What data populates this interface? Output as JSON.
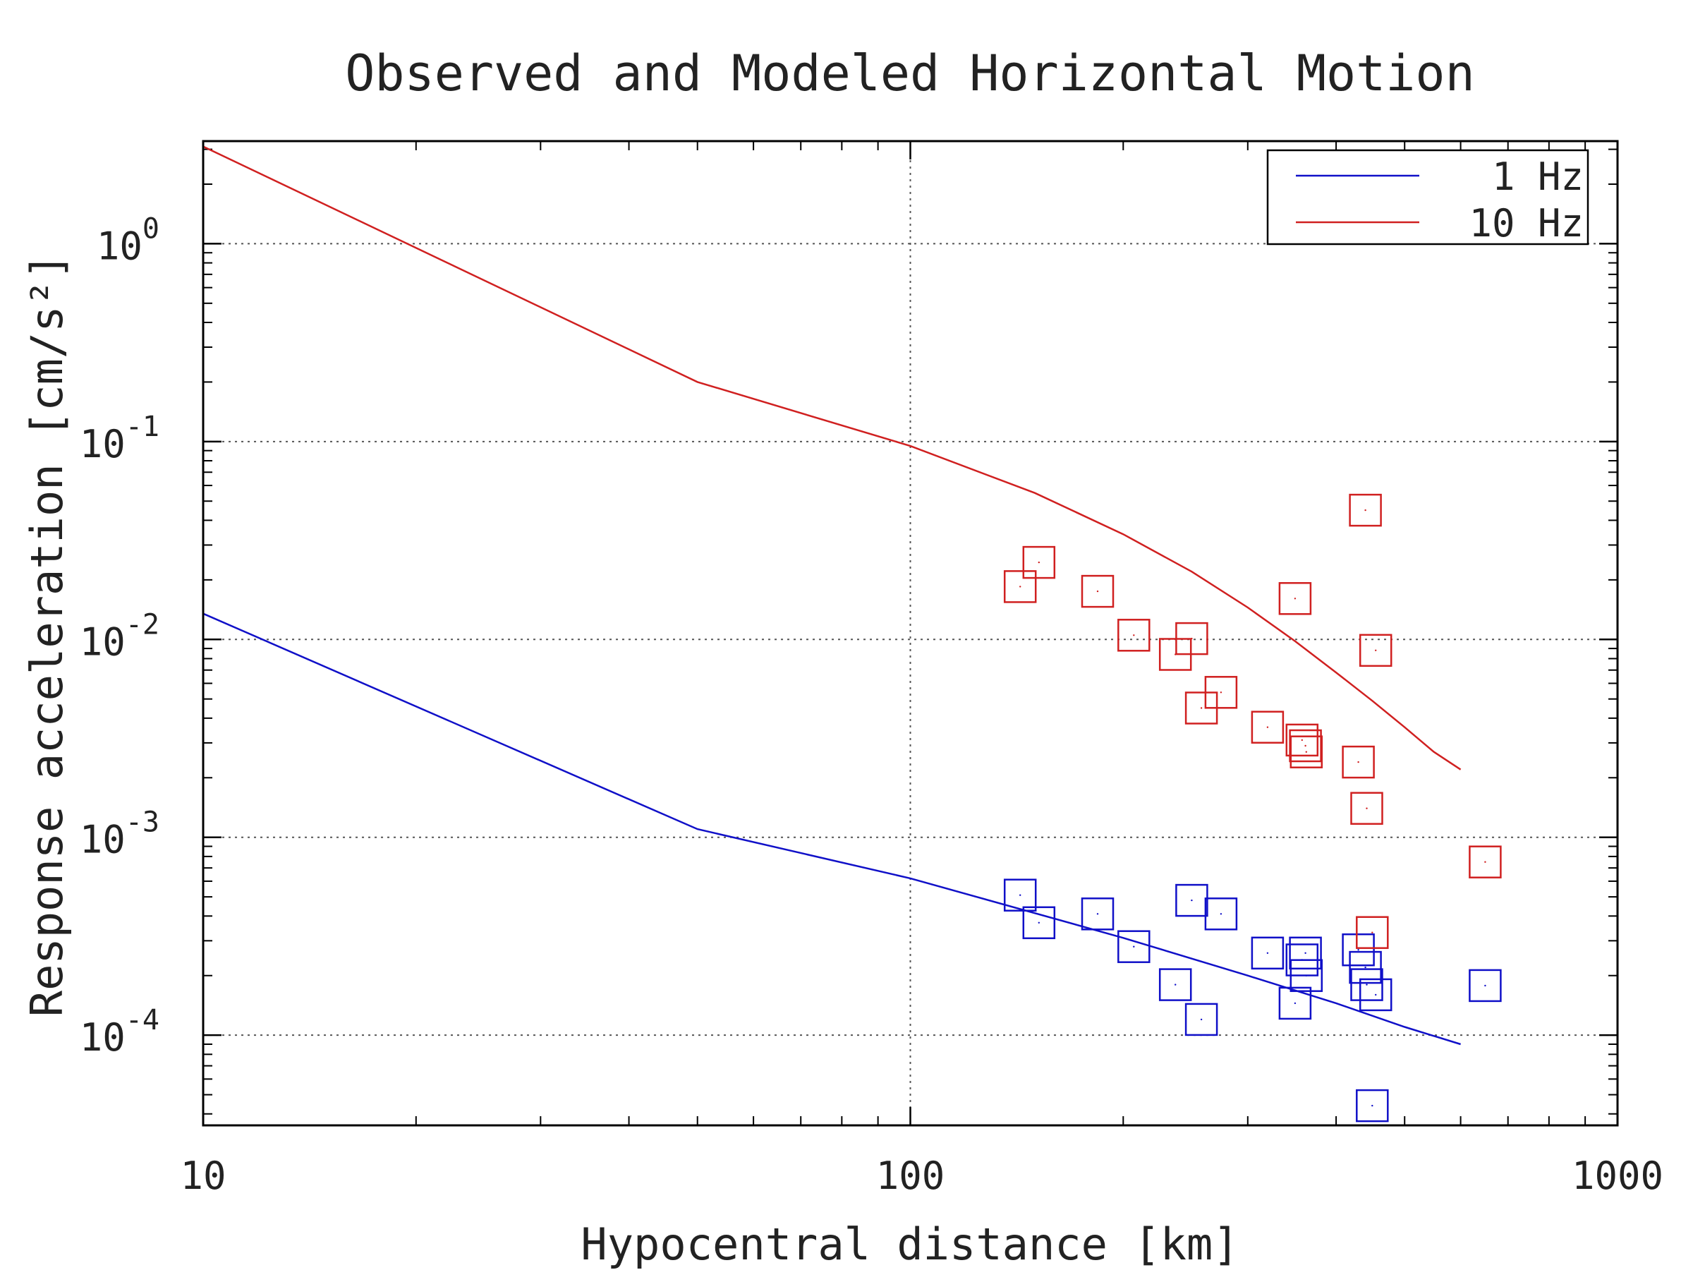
{
  "chart_data": {
    "type": "scatter",
    "title": "Observed and Modeled Horizontal Motion",
    "xlabel": "Hypocentral distance [km]",
    "ylabel": "Response acceleration [cm/s²]",
    "xscale": "log",
    "yscale": "log",
    "xlim": [
      10,
      1000
    ],
    "ylim": [
      3.5e-05,
      3.3
    ],
    "x_ticks": [
      {
        "value": 10,
        "label": "10"
      },
      {
        "value": 100,
        "label": "100"
      },
      {
        "value": 1000,
        "label": "1000"
      }
    ],
    "y_ticks": [
      {
        "value": 0.0001,
        "base": "10",
        "exp": "-4"
      },
      {
        "value": 0.001,
        "base": "10",
        "exp": "-3"
      },
      {
        "value": 0.01,
        "base": "10",
        "exp": "-2"
      },
      {
        "value": 0.1,
        "base": "10",
        "exp": "-1"
      },
      {
        "value": 1,
        "base": "10",
        "exp": "0"
      }
    ],
    "grid": "major-dotted",
    "legend": {
      "placement": "top-right",
      "entries": [
        {
          "label": "1 Hz",
          "color": "#1010c8"
        },
        {
          "label": "10 Hz",
          "color": "#d02020"
        }
      ]
    },
    "model_lines": [
      {
        "color": "#1010c8",
        "x": [
          10,
          50,
          100,
          200,
          300,
          400,
          500,
          600
        ],
        "y": [
          0.0135,
          0.0011,
          0.00062,
          0.00031,
          0.0002,
          0.000145,
          0.00011,
          9e-05
        ]
      },
      {
        "color": "#d02020",
        "x": [
          10,
          50,
          100,
          150,
          200,
          250,
          300,
          350,
          400,
          450,
          500,
          550,
          600
        ],
        "y": [
          3.1,
          0.2,
          0.095,
          0.055,
          0.034,
          0.022,
          0.0145,
          0.0098,
          0.0068,
          0.0049,
          0.0036,
          0.0027,
          0.0022
        ]
      }
    ],
    "observations": [
      {
        "color": "#1010c8",
        "points": [
          {
            "x": 143,
            "y": 0.00051
          },
          {
            "x": 152,
            "y": 0.00037
          },
          {
            "x": 184,
            "y": 0.00041
          },
          {
            "x": 207,
            "y": 0.00028
          },
          {
            "x": 237,
            "y": 0.00018
          },
          {
            "x": 250,
            "y": 0.00048
          },
          {
            "x": 258,
            "y": 0.00012
          },
          {
            "x": 275,
            "y": 0.00041
          },
          {
            "x": 320,
            "y": 0.00026
          },
          {
            "x": 350,
            "y": 0.000145
          },
          {
            "x": 358,
            "y": 0.00024
          },
          {
            "x": 362,
            "y": 0.00026
          },
          {
            "x": 363,
            "y": 0.0002
          },
          {
            "x": 430,
            "y": 0.00027
          },
          {
            "x": 440,
            "y": 0.00022
          },
          {
            "x": 442,
            "y": 0.00018
          },
          {
            "x": 450,
            "y": 4.4e-05
          },
          {
            "x": 455,
            "y": 0.00016
          },
          {
            "x": 650,
            "y": 0.000178
          }
        ]
      },
      {
        "color": "#d02020",
        "points": [
          {
            "x": 143,
            "y": 0.0185
          },
          {
            "x": 152,
            "y": 0.0245
          },
          {
            "x": 184,
            "y": 0.0175
          },
          {
            "x": 207,
            "y": 0.0105
          },
          {
            "x": 237,
            "y": 0.0084
          },
          {
            "x": 250,
            "y": 0.0101
          },
          {
            "x": 258,
            "y": 0.0045
          },
          {
            "x": 275,
            "y": 0.0054
          },
          {
            "x": 320,
            "y": 0.0036
          },
          {
            "x": 350,
            "y": 0.0161
          },
          {
            "x": 358,
            "y": 0.0031
          },
          {
            "x": 362,
            "y": 0.0029
          },
          {
            "x": 363,
            "y": 0.0027
          },
          {
            "x": 430,
            "y": 0.0024
          },
          {
            "x": 440,
            "y": 0.045
          },
          {
            "x": 442,
            "y": 0.0014
          },
          {
            "x": 450,
            "y": 0.00033
          },
          {
            "x": 455,
            "y": 0.0088
          },
          {
            "x": 650,
            "y": 0.00075
          }
        ]
      }
    ]
  }
}
